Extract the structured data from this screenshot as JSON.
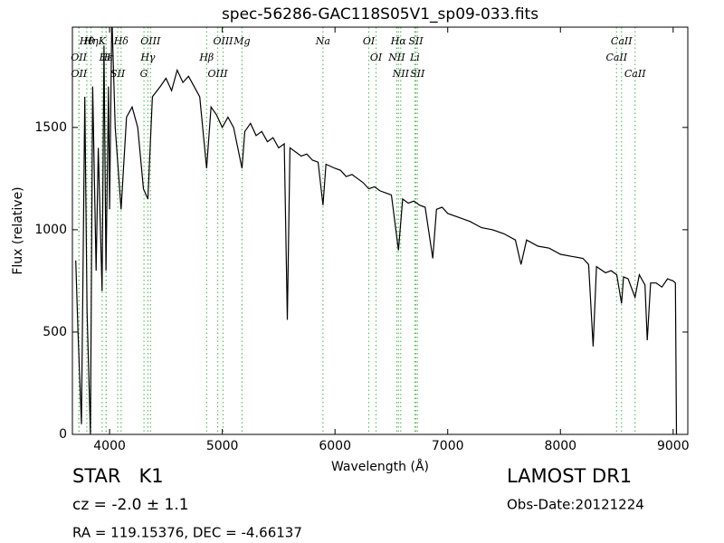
{
  "chart_data": {
    "type": "line",
    "title": "spec-56286-GAC118S05V1_sp09-033.fits",
    "x_label": "Wavelength (Å)",
    "y_label": "Flux (relative)",
    "color": "#000000",
    "line_color": "#66bb66",
    "xlim": [
      3670,
      9130
    ],
    "ylim": [
      0,
      1990
    ],
    "xticks": [
      4000,
      5000,
      6000,
      7000,
      8000,
      9000
    ],
    "yticks": [
      0,
      500,
      1000,
      1500
    ],
    "x": [
      3700,
      3720,
      3750,
      3780,
      3800,
      3830,
      3850,
      3880,
      3900,
      3933,
      3950,
      3968,
      3990,
      4000,
      4020,
      4050,
      4102,
      4150,
      4200,
      4250,
      4300,
      4340,
      4380,
      4450,
      4500,
      4550,
      4600,
      4650,
      4700,
      4750,
      4800,
      4861,
      4900,
      4950,
      5000,
      5050,
      5100,
      5175,
      5200,
      5250,
      5300,
      5350,
      5400,
      5450,
      5500,
      5550,
      5577,
      5600,
      5650,
      5700,
      5750,
      5800,
      5850,
      5893,
      5920,
      6000,
      6050,
      6100,
      6150,
      6200,
      6250,
      6300,
      6350,
      6400,
      6450,
      6500,
      6563,
      6600,
      6650,
      6700,
      6750,
      6800,
      6867,
      6900,
      6950,
      7000,
      7100,
      7200,
      7300,
      7400,
      7500,
      7600,
      7650,
      7700,
      7800,
      7900,
      8000,
      8100,
      8200,
      8250,
      8290,
      8320,
      8400,
      8450,
      8500,
      8542,
      8560,
      8600,
      8662,
      8700,
      8750,
      8770,
      8800,
      8850,
      8900,
      8950,
      9000,
      9020,
      9030
    ],
    "values": [
      850,
      500,
      50,
      1650,
      600,
      0,
      1700,
      800,
      1400,
      700,
      1900,
      800,
      1700,
      1100,
      2050,
      1500,
      1100,
      1550,
      1600,
      1500,
      1200,
      1150,
      1650,
      1700,
      1740,
      1680,
      1780,
      1720,
      1750,
      1700,
      1650,
      1300,
      1600,
      1560,
      1500,
      1550,
      1500,
      1300,
      1480,
      1520,
      1460,
      1480,
      1430,
      1450,
      1400,
      1420,
      560,
      1400,
      1380,
      1360,
      1370,
      1340,
      1330,
      1120,
      1320,
      1300,
      1290,
      1260,
      1270,
      1250,
      1230,
      1200,
      1210,
      1190,
      1180,
      1170,
      900,
      1150,
      1130,
      1140,
      1120,
      1110,
      860,
      1100,
      1110,
      1080,
      1060,
      1040,
      1010,
      1000,
      980,
      950,
      830,
      950,
      920,
      910,
      880,
      870,
      860,
      830,
      430,
      820,
      790,
      800,
      780,
      640,
      770,
      760,
      670,
      780,
      730,
      460,
      740,
      740,
      720,
      760,
      750,
      740,
      0
    ],
    "lines": [
      {
        "label": "Hθ",
        "x": 3798
      },
      {
        "label": "K",
        "x": 3934
      },
      {
        "label": "Hδ",
        "x": 4102
      },
      {
        "label": "OIII",
        "x": 4363
      },
      {
        "label": "OIII",
        "x": 5007
      },
      {
        "label": "OI",
        "x": 6300
      },
      {
        "label": "Hα",
        "x": 6563
      },
      {
        "label": "SII",
        "x": 6717
      },
      {
        "label": "CaII",
        "x": 8542
      },
      {
        "label": "OII",
        "x": 3727
      },
      {
        "label": "Hε",
        "x": 3970
      },
      {
        "label": "SII",
        "x": 4072
      },
      {
        "label": "Hγ",
        "x": 4340
      },
      {
        "label": "Na",
        "x": 5893
      },
      {
        "label": "NII",
        "x": 6548
      },
      {
        "label": "Li",
        "x": 6708
      },
      {
        "label": "CaII",
        "x": 8498
      },
      {
        "label": "OII",
        "x": 3729
      },
      {
        "label": "Hη",
        "x": 3835
      },
      {
        "label": "H",
        "x": 3969
      },
      {
        "label": "G",
        "x": 4305
      },
      {
        "label": "Hβ",
        "x": 4861
      },
      {
        "label": "OIII",
        "x": 4959
      },
      {
        "label": "Mg",
        "x": 5175
      },
      {
        "label": "OI",
        "x": 6364
      },
      {
        "label": "NII",
        "x": 6583
      },
      {
        "label": "SII",
        "x": 6731
      },
      {
        "label": "CaII",
        "x": 8662
      }
    ],
    "annotations": [
      "STAR   K1",
      "LAMOST DR1",
      "cz = -2.0 ± 1.1",
      "Obs-Date:20121224",
      "RA = 119.15376, DEC = -4.66137"
    ]
  }
}
